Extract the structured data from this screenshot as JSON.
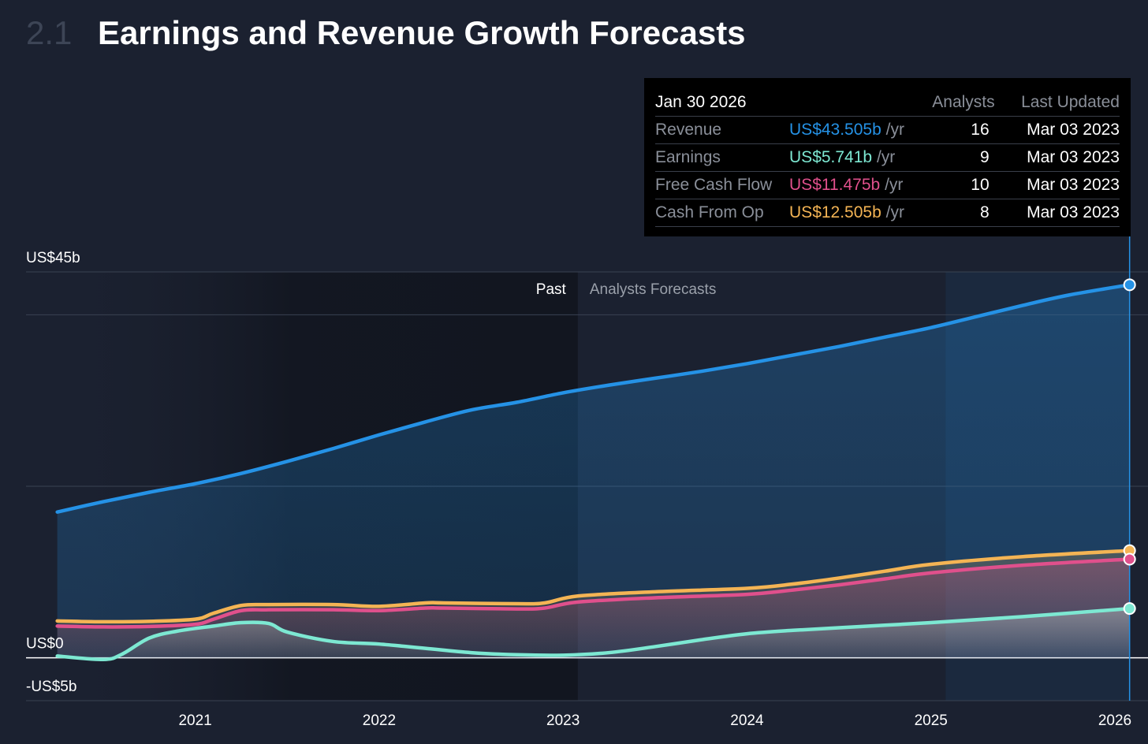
{
  "header": {
    "section_number": "2.1",
    "title": "Earnings and Revenue Growth Forecasts"
  },
  "tooltip": {
    "date": "Jan 30 2026",
    "col_analysts": "Analysts",
    "col_updated": "Last Updated",
    "rows": [
      {
        "metric": "Revenue",
        "value": "US$43.505b",
        "unit": "/yr",
        "analysts": "16",
        "updated": "Mar 03 2023",
        "color": "#2592e6"
      },
      {
        "metric": "Earnings",
        "value": "US$5.741b",
        "unit": "/yr",
        "analysts": "9",
        "updated": "Mar 03 2023",
        "color": "#7de8d2"
      },
      {
        "metric": "Free Cash Flow",
        "value": "US$11.475b",
        "unit": "/yr",
        "analysts": "10",
        "updated": "Mar 03 2023",
        "color": "#e0508c"
      },
      {
        "metric": "Cash From Op",
        "value": "US$12.505b",
        "unit": "/yr",
        "analysts": "8",
        "updated": "Mar 03 2023",
        "color": "#f4b454"
      }
    ]
  },
  "chart_data": {
    "type": "area",
    "title": "Earnings and Revenue Growth Forecasts",
    "ylim": [
      -5,
      45
    ],
    "y_ticks": [
      {
        "value": 45,
        "label": "US$45b"
      },
      {
        "value": 0,
        "label": "US$0"
      },
      {
        "value": -5,
        "label": "-US$5b"
      }
    ],
    "xlim": [
      2020.08,
      2026.18
    ],
    "x_ticks": [
      {
        "value": 2021,
        "label": "2021"
      },
      {
        "value": 2022,
        "label": "2022"
      },
      {
        "value": 2023,
        "label": "2023"
      },
      {
        "value": 2024,
        "label": "2024"
      },
      {
        "value": 2025,
        "label": "2025"
      },
      {
        "value": 2026,
        "label": "2026"
      }
    ],
    "past_label": "Past",
    "forecast_label": "Analysts Forecasts",
    "forecast_start": 2023.08,
    "highlight_start": 2025.08,
    "cursor_x": 2026.08,
    "series": [
      {
        "name": "Revenue",
        "color": "#2592e6",
        "fill": true,
        "x": [
          2020.25,
          2020.5,
          2020.75,
          2021.0,
          2021.25,
          2021.5,
          2021.75,
          2022.0,
          2022.25,
          2022.5,
          2022.75,
          2023.0,
          2023.25,
          2023.5,
          2023.75,
          2024.0,
          2024.25,
          2024.5,
          2024.75,
          2025.0,
          2025.25,
          2025.5,
          2025.75,
          2026.08
        ],
        "y": [
          17.0,
          18.2,
          19.3,
          20.3,
          21.5,
          22.9,
          24.4,
          26.0,
          27.5,
          28.9,
          29.8,
          30.9,
          31.8,
          32.6,
          33.4,
          34.3,
          35.3,
          36.3,
          37.4,
          38.5,
          39.8,
          41.1,
          42.3,
          43.5
        ]
      },
      {
        "name": "Cash From Op",
        "color": "#f4b454",
        "fill": true,
        "x": [
          2020.25,
          2020.5,
          2020.75,
          2021.0,
          2021.1,
          2021.25,
          2021.4,
          2021.75,
          2022.0,
          2022.25,
          2022.35,
          2022.75,
          2022.9,
          2023.08,
          2023.5,
          2024.0,
          2024.25,
          2024.5,
          2024.75,
          2025.0,
          2025.5,
          2026.08
        ],
        "y": [
          4.3,
          4.2,
          4.25,
          4.5,
          5.2,
          6.1,
          6.2,
          6.2,
          6.0,
          6.4,
          6.4,
          6.3,
          6.4,
          7.2,
          7.7,
          8.1,
          8.6,
          9.3,
          10.1,
          10.9,
          11.8,
          12.5
        ]
      },
      {
        "name": "Free Cash Flow",
        "color": "#e0508c",
        "fill": true,
        "x": [
          2020.25,
          2020.5,
          2020.75,
          2021.0,
          2021.1,
          2021.25,
          2021.4,
          2021.75,
          2022.0,
          2022.25,
          2022.35,
          2022.75,
          2022.9,
          2023.08,
          2023.5,
          2024.0,
          2024.25,
          2024.5,
          2024.75,
          2025.0,
          2025.5,
          2026.08
        ],
        "y": [
          3.7,
          3.6,
          3.65,
          3.9,
          4.5,
          5.5,
          5.6,
          5.6,
          5.5,
          5.8,
          5.8,
          5.7,
          5.8,
          6.5,
          7.0,
          7.4,
          7.9,
          8.5,
          9.2,
          9.9,
          10.8,
          11.5
        ]
      },
      {
        "name": "Earnings",
        "color": "#7de8d2",
        "fill": true,
        "x": [
          2020.25,
          2020.5,
          2020.6,
          2020.75,
          2020.9,
          2021.1,
          2021.25,
          2021.4,
          2021.5,
          2021.75,
          2022.0,
          2022.25,
          2022.5,
          2022.75,
          2023.0,
          2023.25,
          2023.5,
          2023.75,
          2024.0,
          2024.25,
          2024.5,
          2024.75,
          2025.0,
          2025.5,
          2026.08
        ],
        "y": [
          0.2,
          -0.2,
          0.4,
          2.3,
          3.1,
          3.7,
          4.1,
          4.0,
          3.0,
          1.9,
          1.6,
          1.1,
          0.6,
          0.35,
          0.3,
          0.6,
          1.3,
          2.1,
          2.8,
          3.2,
          3.5,
          3.8,
          4.1,
          4.8,
          5.741
        ]
      }
    ]
  }
}
